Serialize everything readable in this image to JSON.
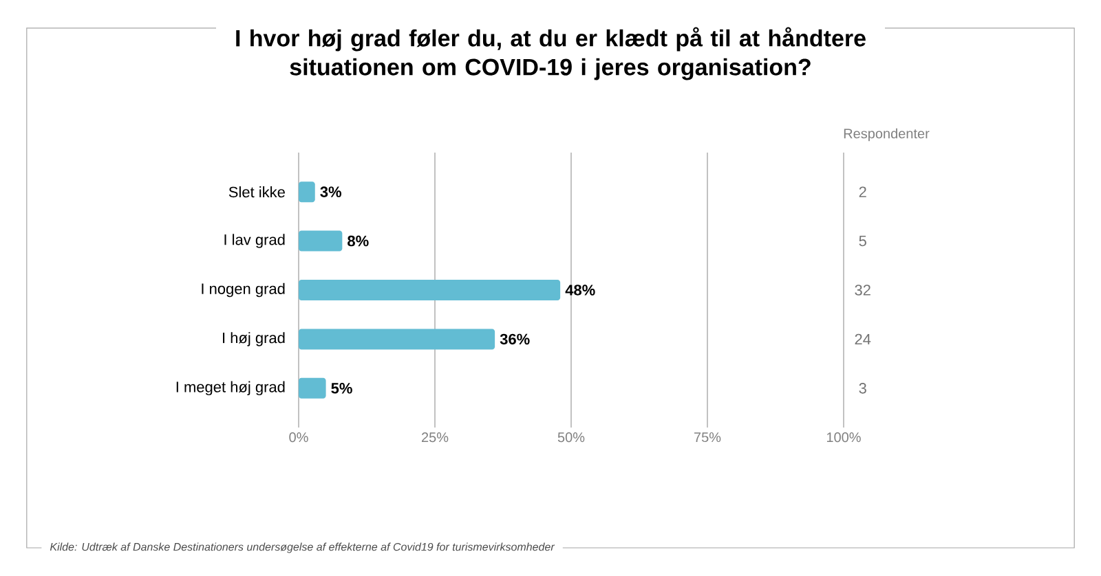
{
  "chart_data": {
    "type": "bar",
    "orientation": "horizontal",
    "title": "I hvor høj grad føler du, at du er klædt på til at håndtere situationen om COVID-19 i jeres organisation?",
    "categories": [
      "Slet ikke",
      "I lav grad",
      "I nogen grad",
      "I høj grad",
      "I meget høj grad"
    ],
    "values": [
      3,
      8,
      48,
      36,
      5
    ],
    "value_labels": [
      "3%",
      "8%",
      "48%",
      "36%",
      "5%"
    ],
    "color": "#62bcd3",
    "xlim": [
      0,
      100
    ],
    "xticks": [
      {
        "value": 0,
        "label": "0%"
      },
      {
        "value": 25,
        "label": "25%"
      },
      {
        "value": 50,
        "label": "50%"
      },
      {
        "value": 75,
        "label": "75%"
      },
      {
        "value": 100,
        "label": "100%"
      }
    ],
    "grid": "x",
    "annotations": [
      "Respondenter",
      "Kilde: Udtræk af Danske Destinationers undersøgelse af effekterne af Covid19 for turismevirksomheder",
      "2",
      "5",
      "32",
      "24",
      "3"
    ]
  }
}
